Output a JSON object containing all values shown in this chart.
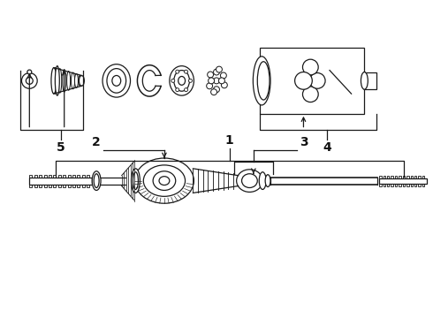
{
  "bg_color": "#ffffff",
  "line_color": "#1a1a1a",
  "label_color": "#111111",
  "lw": 0.9
}
